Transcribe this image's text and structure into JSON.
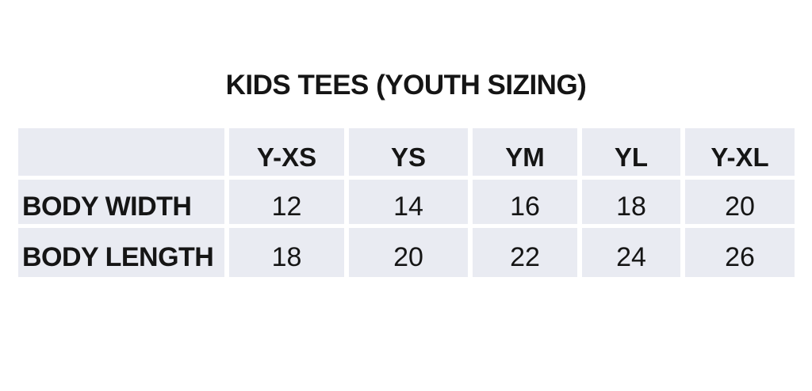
{
  "title": "KIDS TEES (YOUTH SIZING)",
  "colors": {
    "page-bg": "#ffffff",
    "cell-bg": "#e9ebf2",
    "grid-line": "#ffffff",
    "text": "#151515"
  },
  "table": {
    "corner_label": "",
    "columns": [
      "Y-XS",
      "YS",
      "YM",
      "YL",
      "Y-XL"
    ],
    "rows": [
      {
        "label": "BODY WIDTH",
        "values": [
          "12",
          "14",
          "16",
          "18",
          "20"
        ]
      },
      {
        "label": "BODY LENGTH",
        "values": [
          "18",
          "20",
          "22",
          "24",
          "26"
        ]
      }
    ]
  },
  "chart_data": {
    "type": "table",
    "title": "KIDS TEES (YOUTH SIZING)",
    "columns": [
      "",
      "Y-XS",
      "YS",
      "YM",
      "YL",
      "Y-XL"
    ],
    "rows": [
      [
        "BODY WIDTH",
        12,
        14,
        16,
        18,
        20
      ],
      [
        "BODY LENGTH",
        18,
        20,
        22,
        24,
        26
      ]
    ],
    "legend": false,
    "grid": "white gaps between cells"
  }
}
